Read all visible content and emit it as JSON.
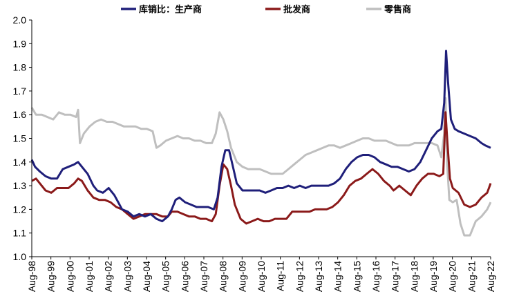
{
  "chart_data": {
    "type": "line",
    "title": "",
    "xlabel": "",
    "ylabel": "",
    "ylim": [
      1.0,
      2.0
    ],
    "yticks": [
      "1.0",
      "1.1",
      "1.2",
      "1.3",
      "1.4",
      "1.5",
      "1.6",
      "1.7",
      "1.8",
      "1.9",
      "2.0"
    ],
    "xticks": [
      "Aug-98",
      "Aug-99",
      "Aug-00",
      "Aug-01",
      "Aug-02",
      "Aug-03",
      "Aug-04",
      "Aug-05",
      "Aug-06",
      "Aug-07",
      "Aug-08",
      "Aug-09",
      "Aug-10",
      "Aug-11",
      "Aug-12",
      "Aug-13",
      "Aug-14",
      "Aug-15",
      "Aug-16",
      "Aug-17",
      "Aug-18",
      "Aug-19",
      "Aug-20",
      "Aug-21",
      "Aug-22"
    ],
    "x_range": [
      1998.58,
      2022.58
    ],
    "grid": false,
    "legend_position": "top",
    "series": [
      {
        "name": "库销比：生产商",
        "color": "#1f1f7a",
        "points": [
          [
            1998.58,
            1.41
          ],
          [
            1998.75,
            1.38
          ],
          [
            1999.0,
            1.36
          ],
          [
            1999.3,
            1.34
          ],
          [
            1999.6,
            1.33
          ],
          [
            1999.9,
            1.33
          ],
          [
            2000.2,
            1.37
          ],
          [
            2000.5,
            1.38
          ],
          [
            2000.8,
            1.39
          ],
          [
            2001.0,
            1.4
          ],
          [
            2001.2,
            1.38
          ],
          [
            2001.5,
            1.35
          ],
          [
            2001.8,
            1.3
          ],
          [
            2002.0,
            1.28
          ],
          [
            2002.3,
            1.27
          ],
          [
            2002.6,
            1.29
          ],
          [
            2002.9,
            1.26
          ],
          [
            2003.1,
            1.23
          ],
          [
            2003.3,
            1.2
          ],
          [
            2003.6,
            1.19
          ],
          [
            2003.9,
            1.17
          ],
          [
            2004.2,
            1.18
          ],
          [
            2004.5,
            1.17
          ],
          [
            2004.8,
            1.18
          ],
          [
            2005.1,
            1.16
          ],
          [
            2005.4,
            1.15
          ],
          [
            2005.7,
            1.17
          ],
          [
            2005.9,
            1.2
          ],
          [
            2006.1,
            1.24
          ],
          [
            2006.3,
            1.25
          ],
          [
            2006.6,
            1.23
          ],
          [
            2006.9,
            1.22
          ],
          [
            2007.2,
            1.21
          ],
          [
            2007.5,
            1.21
          ],
          [
            2007.8,
            1.21
          ],
          [
            2008.1,
            1.2
          ],
          [
            2008.3,
            1.25
          ],
          [
            2008.5,
            1.38
          ],
          [
            2008.7,
            1.45
          ],
          [
            2008.9,
            1.45
          ],
          [
            2009.1,
            1.38
          ],
          [
            2009.3,
            1.31
          ],
          [
            2009.6,
            1.28
          ],
          [
            2009.9,
            1.28
          ],
          [
            2010.2,
            1.28
          ],
          [
            2010.5,
            1.28
          ],
          [
            2010.8,
            1.27
          ],
          [
            2011.1,
            1.28
          ],
          [
            2011.4,
            1.29
          ],
          [
            2011.7,
            1.29
          ],
          [
            2012.0,
            1.3
          ],
          [
            2012.3,
            1.29
          ],
          [
            2012.6,
            1.3
          ],
          [
            2012.9,
            1.29
          ],
          [
            2013.2,
            1.3
          ],
          [
            2013.5,
            1.3
          ],
          [
            2013.8,
            1.3
          ],
          [
            2014.1,
            1.3
          ],
          [
            2014.4,
            1.31
          ],
          [
            2014.7,
            1.33
          ],
          [
            2015.0,
            1.37
          ],
          [
            2015.3,
            1.4
          ],
          [
            2015.6,
            1.42
          ],
          [
            2015.9,
            1.43
          ],
          [
            2016.2,
            1.43
          ],
          [
            2016.5,
            1.42
          ],
          [
            2016.8,
            1.4
          ],
          [
            2017.1,
            1.39
          ],
          [
            2017.4,
            1.38
          ],
          [
            2017.7,
            1.38
          ],
          [
            2018.0,
            1.37
          ],
          [
            2018.3,
            1.36
          ],
          [
            2018.6,
            1.37
          ],
          [
            2018.9,
            1.4
          ],
          [
            2019.2,
            1.45
          ],
          [
            2019.5,
            1.5
          ],
          [
            2019.8,
            1.53
          ],
          [
            2020.0,
            1.54
          ],
          [
            2020.15,
            1.65
          ],
          [
            2020.25,
            1.87
          ],
          [
            2020.35,
            1.74
          ],
          [
            2020.5,
            1.58
          ],
          [
            2020.7,
            1.54
          ],
          [
            2020.9,
            1.53
          ],
          [
            2021.2,
            1.52
          ],
          [
            2021.5,
            1.51
          ],
          [
            2021.8,
            1.5
          ],
          [
            2022.1,
            1.48
          ],
          [
            2022.3,
            1.47
          ],
          [
            2022.58,
            1.46
          ]
        ]
      },
      {
        "name": "批发商",
        "color": "#8b1a1a",
        "points": [
          [
            1998.58,
            1.32
          ],
          [
            1998.8,
            1.33
          ],
          [
            1999.0,
            1.31
          ],
          [
            1999.3,
            1.28
          ],
          [
            1999.6,
            1.27
          ],
          [
            1999.9,
            1.29
          ],
          [
            2000.2,
            1.29
          ],
          [
            2000.5,
            1.29
          ],
          [
            2000.8,
            1.31
          ],
          [
            2001.0,
            1.33
          ],
          [
            2001.2,
            1.32
          ],
          [
            2001.5,
            1.28
          ],
          [
            2001.8,
            1.25
          ],
          [
            2002.1,
            1.24
          ],
          [
            2002.4,
            1.24
          ],
          [
            2002.7,
            1.23
          ],
          [
            2003.0,
            1.21
          ],
          [
            2003.3,
            1.2
          ],
          [
            2003.6,
            1.18
          ],
          [
            2003.9,
            1.16
          ],
          [
            2004.2,
            1.17
          ],
          [
            2004.5,
            1.18
          ],
          [
            2004.8,
            1.18
          ],
          [
            2005.1,
            1.18
          ],
          [
            2005.4,
            1.17
          ],
          [
            2005.7,
            1.17
          ],
          [
            2005.9,
            1.19
          ],
          [
            2006.2,
            1.19
          ],
          [
            2006.5,
            1.18
          ],
          [
            2006.8,
            1.17
          ],
          [
            2007.1,
            1.17
          ],
          [
            2007.4,
            1.16
          ],
          [
            2007.7,
            1.16
          ],
          [
            2008.0,
            1.15
          ],
          [
            2008.2,
            1.18
          ],
          [
            2008.4,
            1.3
          ],
          [
            2008.6,
            1.39
          ],
          [
            2008.8,
            1.37
          ],
          [
            2009.0,
            1.3
          ],
          [
            2009.2,
            1.22
          ],
          [
            2009.5,
            1.16
          ],
          [
            2009.8,
            1.14
          ],
          [
            2010.1,
            1.15
          ],
          [
            2010.4,
            1.16
          ],
          [
            2010.7,
            1.15
          ],
          [
            2011.0,
            1.15
          ],
          [
            2011.3,
            1.16
          ],
          [
            2011.6,
            1.16
          ],
          [
            2011.9,
            1.16
          ],
          [
            2012.2,
            1.19
          ],
          [
            2012.5,
            1.19
          ],
          [
            2012.8,
            1.19
          ],
          [
            2013.1,
            1.19
          ],
          [
            2013.4,
            1.2
          ],
          [
            2013.7,
            1.2
          ],
          [
            2014.0,
            1.2
          ],
          [
            2014.3,
            1.21
          ],
          [
            2014.6,
            1.23
          ],
          [
            2014.9,
            1.26
          ],
          [
            2015.2,
            1.3
          ],
          [
            2015.5,
            1.32
          ],
          [
            2015.8,
            1.33
          ],
          [
            2016.1,
            1.35
          ],
          [
            2016.4,
            1.37
          ],
          [
            2016.7,
            1.35
          ],
          [
            2017.0,
            1.32
          ],
          [
            2017.3,
            1.3
          ],
          [
            2017.5,
            1.28
          ],
          [
            2017.8,
            1.3
          ],
          [
            2018.1,
            1.28
          ],
          [
            2018.4,
            1.26
          ],
          [
            2018.7,
            1.3
          ],
          [
            2019.0,
            1.33
          ],
          [
            2019.3,
            1.35
          ],
          [
            2019.6,
            1.35
          ],
          [
            2019.9,
            1.34
          ],
          [
            2020.1,
            1.35
          ],
          [
            2020.22,
            1.61
          ],
          [
            2020.32,
            1.48
          ],
          [
            2020.45,
            1.33
          ],
          [
            2020.6,
            1.29
          ],
          [
            2020.9,
            1.27
          ],
          [
            2021.2,
            1.22
          ],
          [
            2021.5,
            1.21
          ],
          [
            2021.8,
            1.22
          ],
          [
            2022.1,
            1.25
          ],
          [
            2022.4,
            1.27
          ],
          [
            2022.58,
            1.31
          ]
        ]
      },
      {
        "name": "零售商",
        "color": "#bfbfbf",
        "points": [
          [
            1998.58,
            1.63
          ],
          [
            1998.8,
            1.6
          ],
          [
            1999.1,
            1.6
          ],
          [
            1999.4,
            1.59
          ],
          [
            1999.7,
            1.58
          ],
          [
            2000.0,
            1.61
          ],
          [
            2000.3,
            1.6
          ],
          [
            2000.6,
            1.6
          ],
          [
            2000.9,
            1.59
          ],
          [
            2001.0,
            1.62
          ],
          [
            2001.1,
            1.48
          ],
          [
            2001.3,
            1.52
          ],
          [
            2001.6,
            1.55
          ],
          [
            2001.9,
            1.57
          ],
          [
            2002.2,
            1.58
          ],
          [
            2002.5,
            1.57
          ],
          [
            2002.8,
            1.57
          ],
          [
            2003.1,
            1.56
          ],
          [
            2003.4,
            1.55
          ],
          [
            2003.7,
            1.55
          ],
          [
            2004.0,
            1.55
          ],
          [
            2004.3,
            1.54
          ],
          [
            2004.6,
            1.54
          ],
          [
            2004.9,
            1.53
          ],
          [
            2005.1,
            1.46
          ],
          [
            2005.3,
            1.47
          ],
          [
            2005.6,
            1.49
          ],
          [
            2005.9,
            1.5
          ],
          [
            2006.2,
            1.51
          ],
          [
            2006.5,
            1.5
          ],
          [
            2006.8,
            1.5
          ],
          [
            2007.1,
            1.49
          ],
          [
            2007.4,
            1.49
          ],
          [
            2007.7,
            1.48
          ],
          [
            2008.0,
            1.48
          ],
          [
            2008.2,
            1.52
          ],
          [
            2008.4,
            1.61
          ],
          [
            2008.6,
            1.58
          ],
          [
            2008.8,
            1.53
          ],
          [
            2009.0,
            1.46
          ],
          [
            2009.3,
            1.4
          ],
          [
            2009.6,
            1.38
          ],
          [
            2009.9,
            1.37
          ],
          [
            2010.2,
            1.37
          ],
          [
            2010.5,
            1.37
          ],
          [
            2010.8,
            1.36
          ],
          [
            2011.1,
            1.35
          ],
          [
            2011.4,
            1.35
          ],
          [
            2011.7,
            1.35
          ],
          [
            2012.0,
            1.37
          ],
          [
            2012.3,
            1.39
          ],
          [
            2012.6,
            1.41
          ],
          [
            2012.9,
            1.43
          ],
          [
            2013.2,
            1.44
          ],
          [
            2013.5,
            1.45
          ],
          [
            2013.8,
            1.46
          ],
          [
            2014.1,
            1.47
          ],
          [
            2014.4,
            1.47
          ],
          [
            2014.7,
            1.46
          ],
          [
            2015.0,
            1.47
          ],
          [
            2015.3,
            1.48
          ],
          [
            2015.6,
            1.49
          ],
          [
            2015.9,
            1.5
          ],
          [
            2016.2,
            1.5
          ],
          [
            2016.5,
            1.49
          ],
          [
            2016.8,
            1.49
          ],
          [
            2017.1,
            1.49
          ],
          [
            2017.4,
            1.48
          ],
          [
            2017.7,
            1.47
          ],
          [
            2018.0,
            1.47
          ],
          [
            2018.3,
            1.47
          ],
          [
            2018.6,
            1.48
          ],
          [
            2018.9,
            1.48
          ],
          [
            2019.2,
            1.48
          ],
          [
            2019.5,
            1.48
          ],
          [
            2019.8,
            1.47
          ],
          [
            2020.0,
            1.42
          ],
          [
            2020.15,
            1.52
          ],
          [
            2020.22,
            1.67
          ],
          [
            2020.3,
            1.4
          ],
          [
            2020.42,
            1.24
          ],
          [
            2020.6,
            1.23
          ],
          [
            2020.8,
            1.24
          ],
          [
            2021.0,
            1.14
          ],
          [
            2021.2,
            1.09
          ],
          [
            2021.5,
            1.09
          ],
          [
            2021.8,
            1.15
          ],
          [
            2022.1,
            1.17
          ],
          [
            2022.4,
            1.2
          ],
          [
            2022.58,
            1.23
          ]
        ]
      }
    ]
  }
}
